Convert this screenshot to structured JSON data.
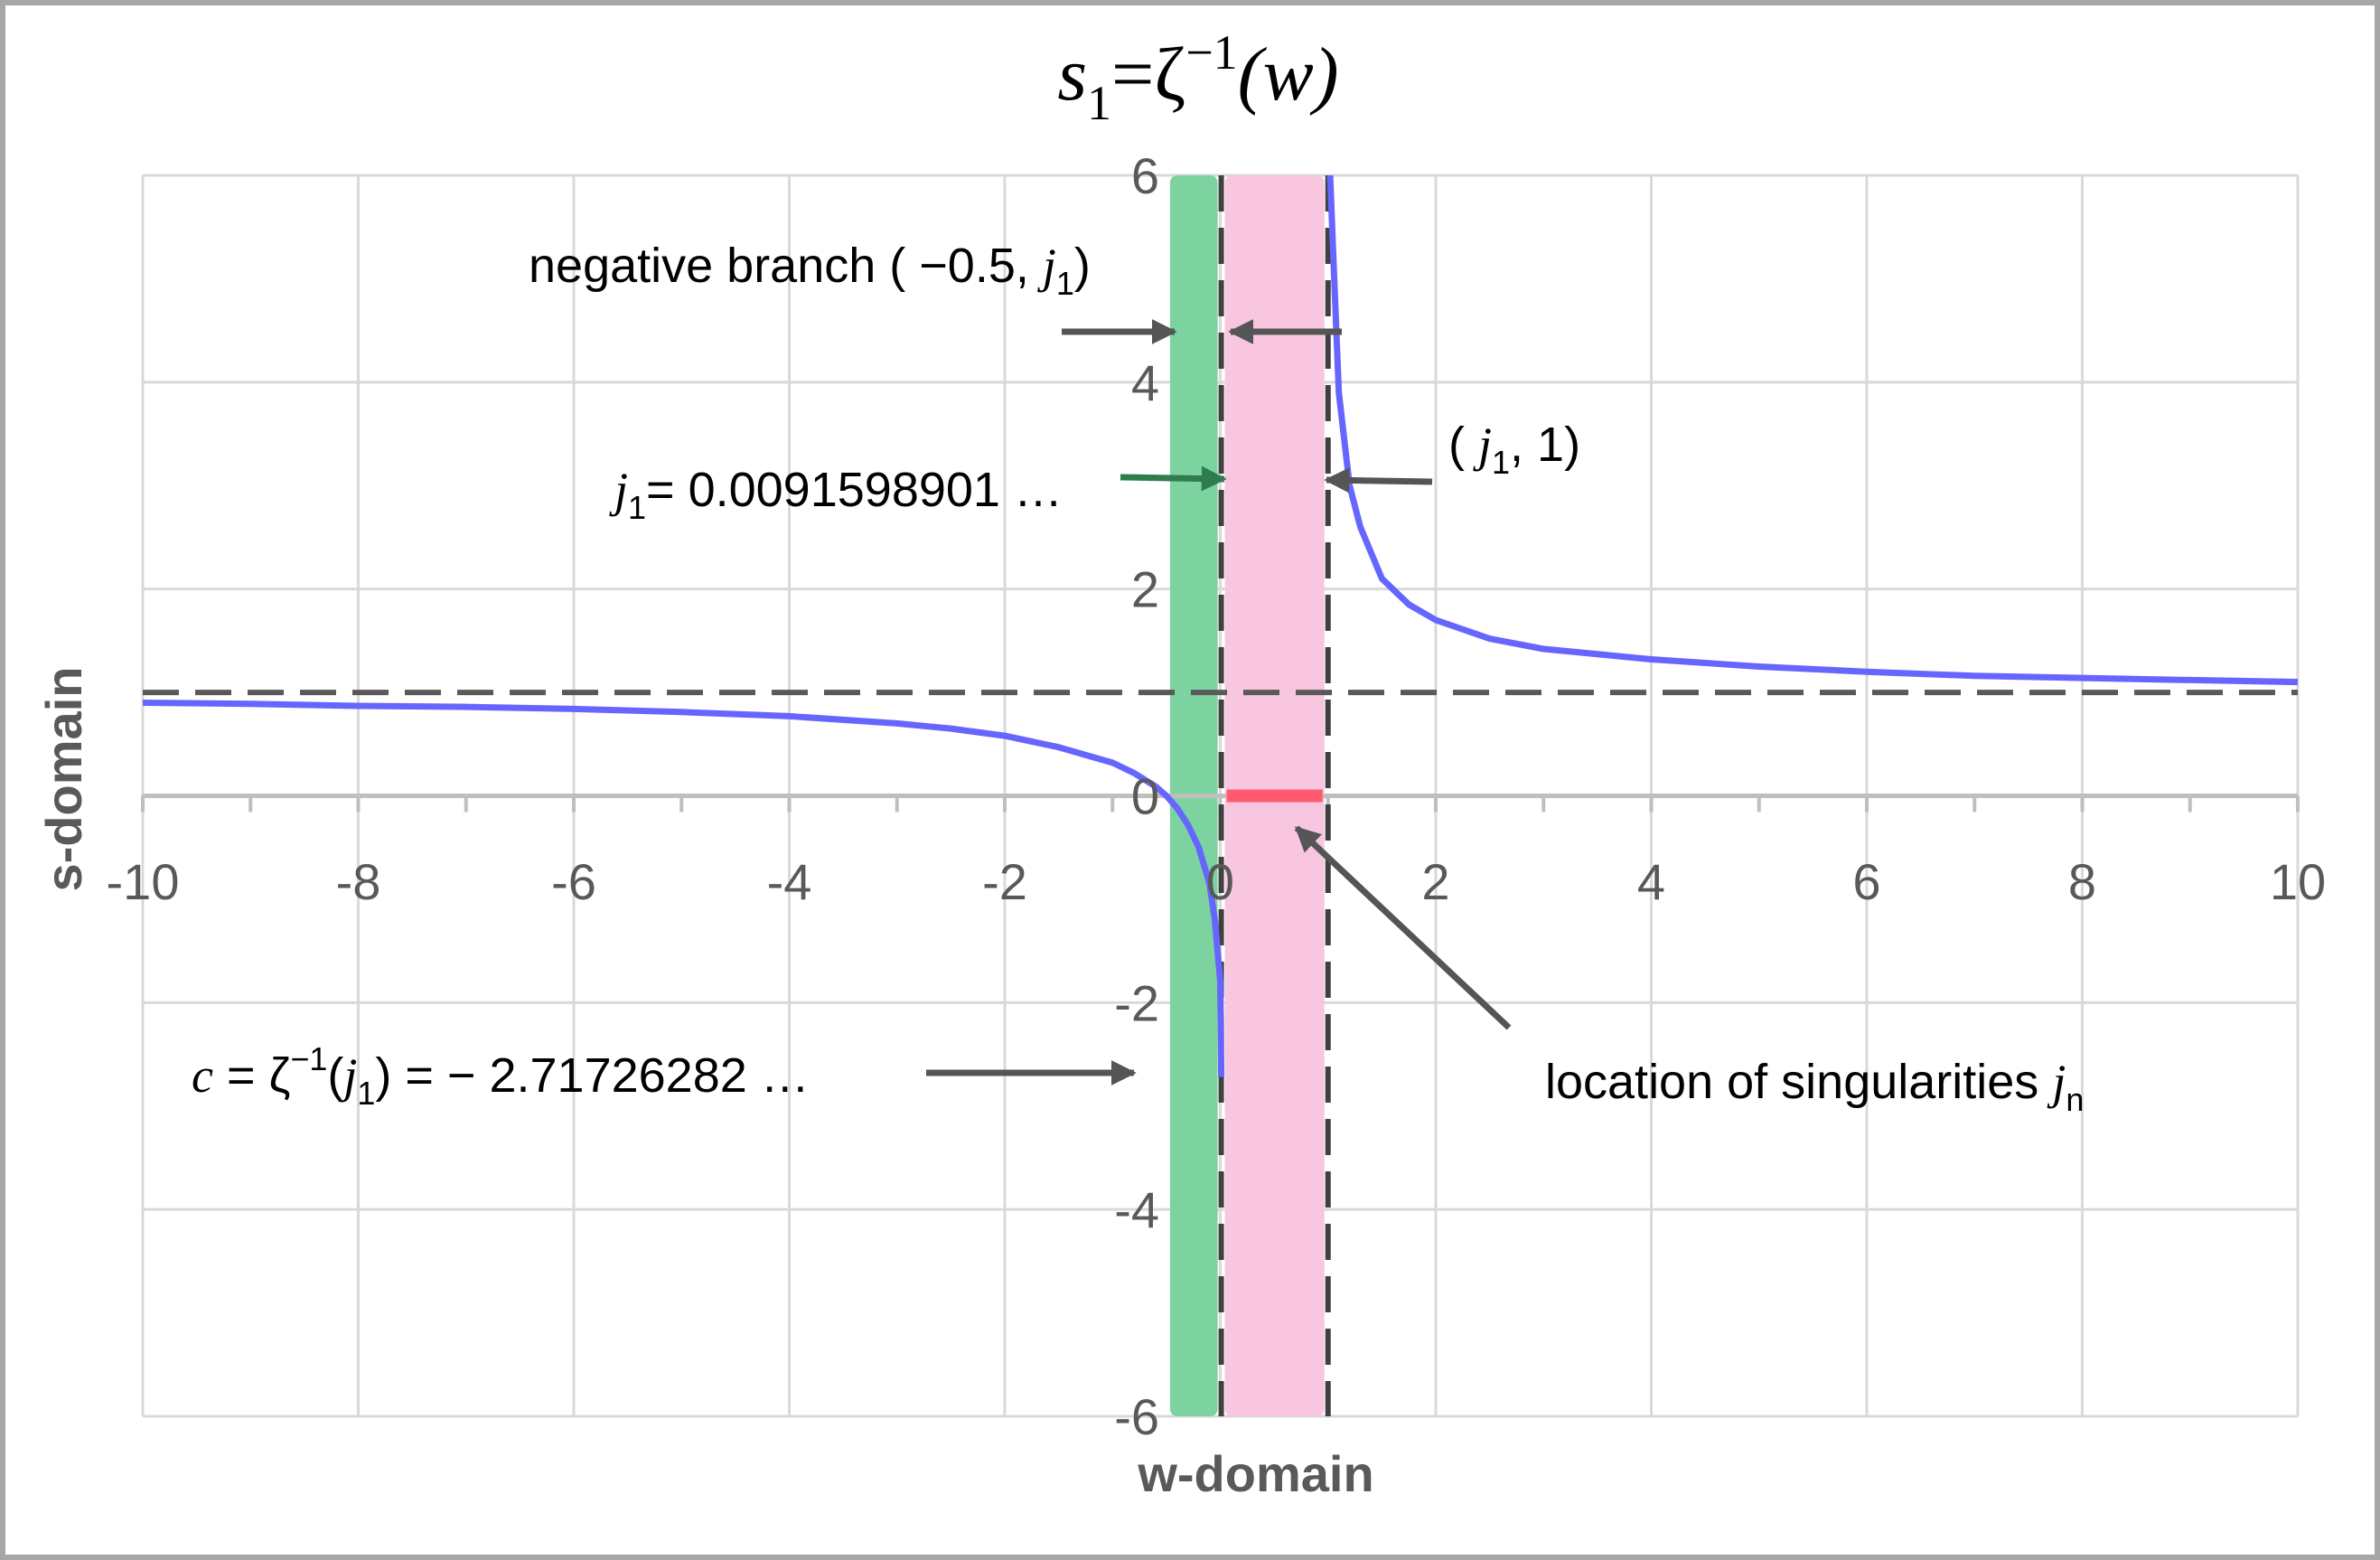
{
  "chart_data": {
    "type": "line",
    "title_parts": {
      "s": "s",
      "sub1": "1",
      "eq": "=ζ",
      "sup": "−1",
      "arg": "(w)"
    },
    "xlabel": "w-domain",
    "ylabel": "s-domain",
    "xlim": [
      -10,
      10
    ],
    "ylim": [
      -6,
      6
    ],
    "x_ticks": [
      -10,
      -8,
      -6,
      -4,
      -2,
      0,
      2,
      4,
      6,
      8,
      10
    ],
    "y_ticks": [
      -6,
      -4,
      -2,
      0,
      2,
      4,
      6
    ],
    "grid": true,
    "regions": [
      {
        "id": "negative-branch",
        "x": [
          -0.5,
          0.0092
        ],
        "color": "#7dd3a0"
      },
      {
        "id": "singularities",
        "x": [
          0.0092,
          1
        ],
        "color": "#f9c6e0"
      }
    ],
    "vlines": [
      0.0092,
      1
    ],
    "hline": 1,
    "singularity_segment": {
      "x": [
        0.0092,
        1
      ],
      "y": 0,
      "color": "#ff5a6e"
    },
    "series": [
      {
        "id": "left-branch",
        "color": "#6666ff",
        "x": [
          -10,
          -9,
          -8,
          -7,
          -6,
          -5,
          -4,
          -3,
          -2.5,
          -2,
          -1.5,
          -1,
          -0.8,
          -0.6,
          -0.5,
          -0.4,
          -0.3,
          -0.2,
          -0.1,
          -0.05,
          0,
          0.005,
          0.0092
        ],
        "y": [
          0.9,
          0.89,
          0.87,
          0.86,
          0.84,
          0.81,
          0.77,
          0.7,
          0.65,
          0.58,
          0.47,
          0.32,
          0.22,
          0.09,
          0.0,
          -0.12,
          -0.28,
          -0.5,
          -0.85,
          -1.2,
          -1.8,
          -2.2,
          -2.72
        ]
      },
      {
        "id": "right-branch",
        "color": "#6666ff",
        "x": [
          1.02,
          1.05,
          1.1,
          1.2,
          1.3,
          1.5,
          1.75,
          2,
          2.5,
          3,
          4,
          5,
          6,
          7,
          8,
          9,
          10
        ],
        "y": [
          6,
          5.2,
          3.9,
          3.0,
          2.6,
          2.1,
          1.85,
          1.7,
          1.52,
          1.42,
          1.32,
          1.25,
          1.2,
          1.16,
          1.14,
          1.12,
          1.1
        ]
      }
    ],
    "annotations": {
      "negative_branch": {
        "text": "negative branch ( −0.5, ",
        "sym": "j",
        "sub": "1",
        "close": ")"
      },
      "j1": {
        "sym": "j",
        "sub": "1",
        "text": "= 0.0091598901 …"
      },
      "j1_1": {
        "open": "( ",
        "sym": "j",
        "sub": "1",
        "text": ", 1)"
      },
      "c_value": {
        "c": "c",
        "eq1": " = ζ",
        "sup": "−1",
        "open": "(",
        "sym": "j",
        "sub": "1",
        "text": ") = − 2.71726282 …"
      },
      "singularities": {
        "text": "location of singularities ",
        "sym": "j",
        "sub": "n"
      }
    }
  }
}
